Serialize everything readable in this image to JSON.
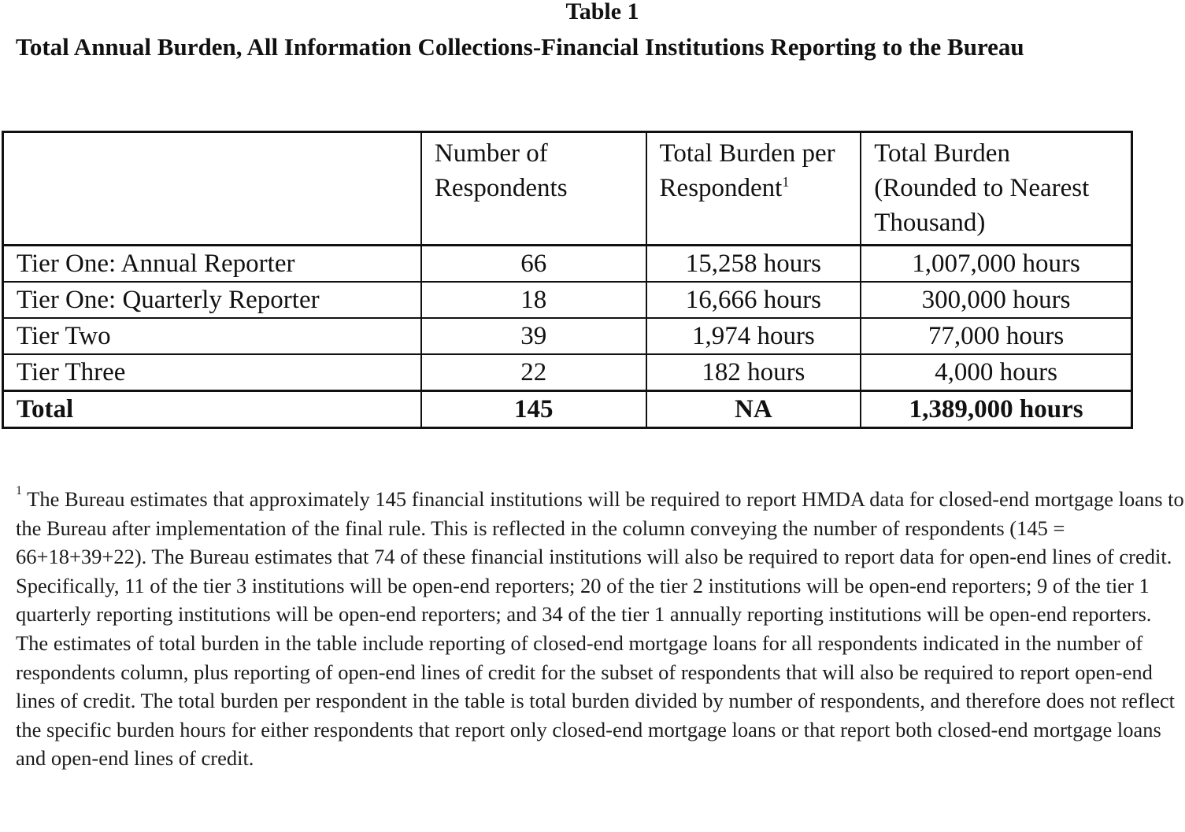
{
  "table_label": "Table 1",
  "caption": "Total Annual Burden, All Information Collections-Financial Institutions Reporting to the Bureau",
  "table": {
    "headers": [
      "",
      "Number of Respondents",
      "Total Burden per Respondent",
      "Total Burden (Rounded to Nearest Thousand)"
    ],
    "header_footnote_mark": "1",
    "rows": [
      [
        "Tier One: Annual Reporter",
        "66",
        "15,258 hours",
        "1,007,000 hours"
      ],
      [
        "Tier One: Quarterly Reporter",
        "18",
        "16,666 hours",
        "300,000 hours"
      ],
      [
        "Tier Two",
        "39",
        "1,974 hours",
        "77,000 hours"
      ],
      [
        "Tier Three",
        "22",
        "182 hours",
        "4,000 hours"
      ]
    ],
    "total": [
      "Total",
      "145",
      "NA",
      "1,389,000 hours"
    ]
  },
  "footnote": {
    "mark": "1",
    "text": "The Bureau estimates that approximately 145 financial institutions will be required to report HMDA data for closed-end mortgage loans to the Bureau after implementation of the final rule. This is reflected in the column conveying the number of respondents (145 = 66+18+39+22). The Bureau estimates that 74 of these financial institutions will also be required to report data for open-end lines of credit. Specifically, 11 of the tier 3 institutions will be open-end reporters; 20 of the tier 2 institutions will be open-end reporters; 9 of the tier 1 quarterly reporting institutions will be open-end reporters; and 34 of the tier 1 annually reporting institutions will be open-end reporters. The estimates of total burden in the table include reporting of closed-end mortgage loans for all respondents indicated in the number of respondents column, plus reporting of open-end lines of credit for the subset of respondents that will also be required to report open-end lines of credit. The total burden per respondent in the table is total burden divided by number of respondents, and therefore does not reflect the specific burden hours for either respondents that report only closed-end mortgage loans or that report both closed-end mortgage loans and open-end lines of credit."
  }
}
